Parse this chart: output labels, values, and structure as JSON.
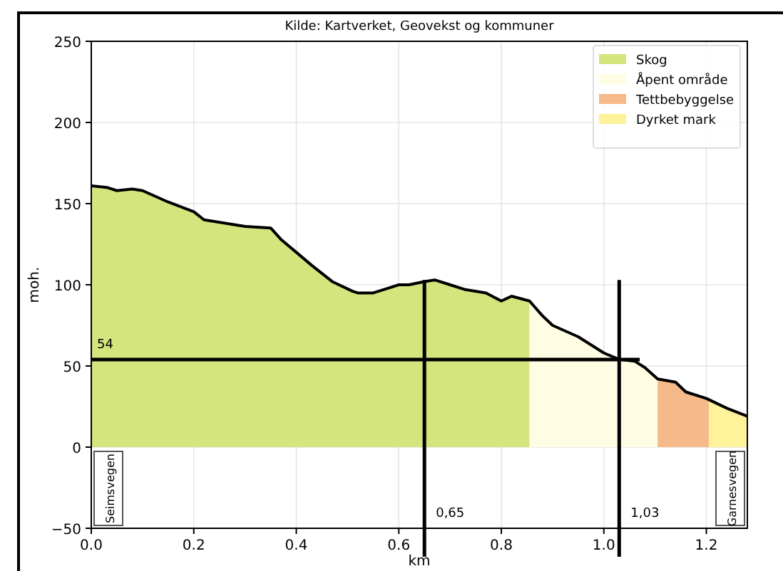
{
  "chart_data": {
    "type": "area",
    "title": "Kilde: Kartverket, Geovekst og kommuner",
    "xlabel": "km",
    "ylabel": "moh.",
    "xlim": [
      0,
      1.28
    ],
    "ylim": [
      -50,
      250
    ],
    "xticks": [
      {
        "value": 0,
        "label": "0.0"
      },
      {
        "value": 0.2,
        "label": "0.2"
      },
      {
        "value": 0.4,
        "label": "0.4"
      },
      {
        "value": 0.6,
        "label": "0.6"
      },
      {
        "value": 0.8,
        "label": "0.8"
      },
      {
        "value": 1.0,
        "label": "1.0"
      },
      {
        "value": 1.2,
        "label": "1.2"
      }
    ],
    "yticks": [
      {
        "value": -50,
        "label": "−50"
      },
      0,
      50,
      100,
      150,
      200,
      250
    ],
    "grid": true,
    "legend": "top right",
    "series": [
      {
        "name": "Skog",
        "color": "#d4e57e",
        "x": [
          0,
          0.03,
          0.05,
          0.08,
          0.1,
          0.15,
          0.2,
          0.22,
          0.3,
          0.35,
          0.37,
          0.4,
          0.43,
          0.47,
          0.51,
          0.52,
          0.55,
          0.58,
          0.6,
          0.62,
          0.65,
          0.67,
          0.7,
          0.73,
          0.77,
          0.8,
          0.82,
          0.855
        ],
        "values": [
          161,
          160,
          158,
          159,
          158,
          151,
          145,
          140,
          136,
          135,
          128,
          120,
          112,
          102,
          96,
          95,
          95,
          98,
          100,
          100,
          102,
          103,
          100,
          97,
          95,
          90,
          93,
          90
        ]
      },
      {
        "name": "Åpent område",
        "color": "#fefde3",
        "x": [
          0.855,
          0.88,
          0.9,
          0.95,
          1.0,
          1.03,
          1.06,
          1.08,
          1.105
        ],
        "values": [
          90,
          81,
          75,
          68,
          58,
          54,
          53,
          49,
          42
        ]
      },
      {
        "name": "Tettbebyggelse",
        "color": "#f5b98a",
        "x": [
          1.105,
          1.14,
          1.16,
          1.2,
          1.205
        ],
        "values": [
          42,
          40,
          34,
          30,
          29
        ]
      },
      {
        "name": "Dyrket mark",
        "color": "#fef29b",
        "x": [
          1.205,
          1.24,
          1.28
        ],
        "values": [
          29,
          24,
          19
        ]
      },
      {
        "type": "line",
        "color": "#000000",
        "x": [
          0,
          0.03,
          0.05,
          0.08,
          0.1,
          0.15,
          0.2,
          0.22,
          0.3,
          0.35,
          0.37,
          0.4,
          0.43,
          0.47,
          0.51,
          0.52,
          0.55,
          0.58,
          0.6,
          0.62,
          0.65,
          0.67,
          0.7,
          0.73,
          0.77,
          0.8,
          0.82,
          0.855,
          0.88,
          0.9,
          0.95,
          1.0,
          1.03,
          1.06,
          1.08,
          1.105,
          1.14,
          1.16,
          1.2,
          1.24,
          1.28
        ],
        "values": [
          161,
          160,
          158,
          159,
          158,
          151,
          145,
          140,
          136,
          135,
          128,
          120,
          112,
          102,
          96,
          95,
          95,
          98,
          100,
          100,
          102,
          103,
          100,
          97,
          95,
          90,
          93,
          90,
          81,
          75,
          68,
          58,
          54,
          53,
          49,
          42,
          40,
          34,
          30,
          24,
          19
        ]
      }
    ],
    "ref_lines": [
      {
        "axis": "y",
        "value": 54,
        "label": "54",
        "color": "#000000"
      },
      {
        "axis": "x",
        "value": 0.65,
        "label": "0,65",
        "color": "#000000"
      },
      {
        "axis": "x",
        "value": 1.03,
        "label": "1,03",
        "color": "#000000"
      }
    ],
    "annotations": [
      "Seimsvegen",
      "Garnesvegen"
    ]
  }
}
